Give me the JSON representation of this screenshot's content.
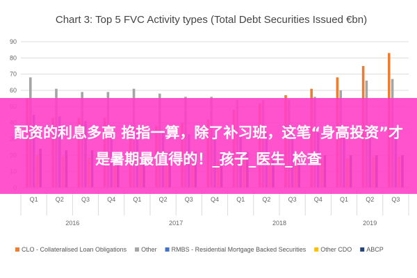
{
  "chart_data": {
    "type": "bar",
    "title": "Chart 3: Top 5 FVC Activity types (Total Debt Securities Issued €bn)",
    "ylim": [
      0,
      90
    ],
    "yticks": [
      0,
      10,
      20,
      30,
      40,
      50,
      60,
      70,
      80,
      90
    ],
    "grid": true,
    "legend_position": "bottom",
    "categories": [
      "Q1",
      "Q2",
      "Q3",
      "Q4",
      "Q1",
      "Q2",
      "Q3",
      "Q4",
      "Q1",
      "Q2",
      "Q3",
      "Q4",
      "Q1",
      "Q2",
      "Q3"
    ],
    "years": [
      {
        "label": "2016",
        "count": 4
      },
      {
        "label": "2017",
        "count": 4
      },
      {
        "label": "2018",
        "count": 4
      },
      {
        "label": "2019",
        "count": 3
      }
    ],
    "series": [
      {
        "name": "CLO - Collateralised Loan Obligations",
        "color": "#ED7D31",
        "values": [
          55,
          43,
          43,
          43,
          38,
          38,
          40,
          42,
          48,
          52,
          57,
          61,
          68,
          75,
          83
        ]
      },
      {
        "name": "Other",
        "color": "#A5A5A5",
        "values": [
          68,
          61,
          59,
          59,
          61,
          58,
          56,
          56,
          54,
          54,
          54,
          56,
          60,
          66,
          67
        ]
      },
      {
        "name": "RMBS - Residential Mortgage Backed Securities",
        "color": "#4472C4",
        "values": [
          45,
          44,
          41,
          38,
          36,
          34,
          33,
          32,
          33,
          34,
          34,
          34,
          35,
          36,
          36
        ]
      },
      {
        "name": "Other CDO",
        "color": "#FFC000",
        "values": [
          20,
          19,
          18,
          17,
          17,
          16,
          16,
          16,
          17,
          17,
          17,
          17,
          18,
          19,
          19
        ]
      },
      {
        "name": "ABCP",
        "color": "#264478",
        "values": [
          24,
          23,
          23,
          22,
          22,
          22,
          22,
          22,
          22,
          21,
          20,
          20,
          20,
          20,
          20
        ]
      }
    ]
  },
  "banner": {
    "text": "配资的利息多高 掐指一算，除了补习班，这笔“身高投资”才是暑期最值得的！_孩子_医生_检查"
  }
}
